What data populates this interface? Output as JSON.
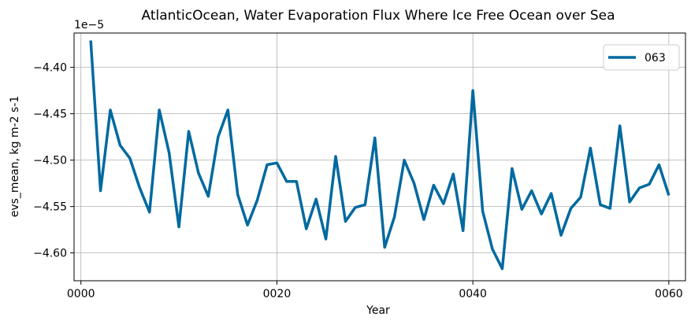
{
  "chart_data": {
    "type": "line",
    "title": "AtlanticOcean, Water Evaporation Flux Where Ice Free Ocean over Sea",
    "xlabel": "Year",
    "ylabel": "evs_mean, kg m-2 s-1",
    "y_offset_label": "1e−5",
    "xlim": [
      -0.7,
      61.7
    ],
    "ylim": [
      -4.63,
      -4.363
    ],
    "xticks": [
      0,
      20,
      40,
      60
    ],
    "xtick_labels": [
      "0000",
      "0020",
      "0040",
      "0060"
    ],
    "yticks": [
      -4.4,
      -4.45,
      -4.5,
      -4.55,
      -4.6
    ],
    "ytick_labels": [
      "−4.40",
      "−4.45",
      "−4.50",
      "−4.55",
      "−4.60"
    ],
    "grid": true,
    "legend_position": "top-right",
    "series": [
      {
        "name": "063",
        "color": "#0069a0",
        "x": [
          1,
          2,
          3,
          4,
          5,
          6,
          7,
          8,
          9,
          10,
          11,
          12,
          13,
          14,
          15,
          16,
          17,
          18,
          19,
          20,
          21,
          22,
          23,
          24,
          25,
          26,
          27,
          28,
          29,
          30,
          31,
          32,
          33,
          34,
          35,
          36,
          37,
          38,
          39,
          40,
          41,
          42,
          43,
          44,
          45,
          46,
          47,
          48,
          49,
          50,
          51,
          52,
          53,
          54,
          55,
          56,
          57,
          58,
          59,
          60
        ],
        "values": [
          -4.371,
          -4.533,
          -4.446,
          -4.484,
          -4.498,
          -4.53,
          -4.556,
          -4.446,
          -4.492,
          -4.572,
          -4.469,
          -4.514,
          -4.539,
          -4.475,
          -4.446,
          -4.537,
          -4.57,
          -4.543,
          -4.505,
          -4.503,
          -4.523,
          -4.523,
          -4.574,
          -4.542,
          -4.585,
          -4.496,
          -4.566,
          -4.551,
          -4.548,
          -4.476,
          -4.594,
          -4.561,
          -4.5,
          -4.525,
          -4.564,
          -4.527,
          -4.547,
          -4.515,
          -4.576,
          -4.425,
          -4.555,
          -4.596,
          -4.617,
          -4.509,
          -4.553,
          -4.533,
          -4.558,
          -4.536,
          -4.581,
          -4.552,
          -4.54,
          -4.487,
          -4.548,
          -4.552,
          -4.463,
          -4.545,
          -4.53,
          -4.526,
          -4.505,
          -4.538
        ]
      }
    ]
  }
}
